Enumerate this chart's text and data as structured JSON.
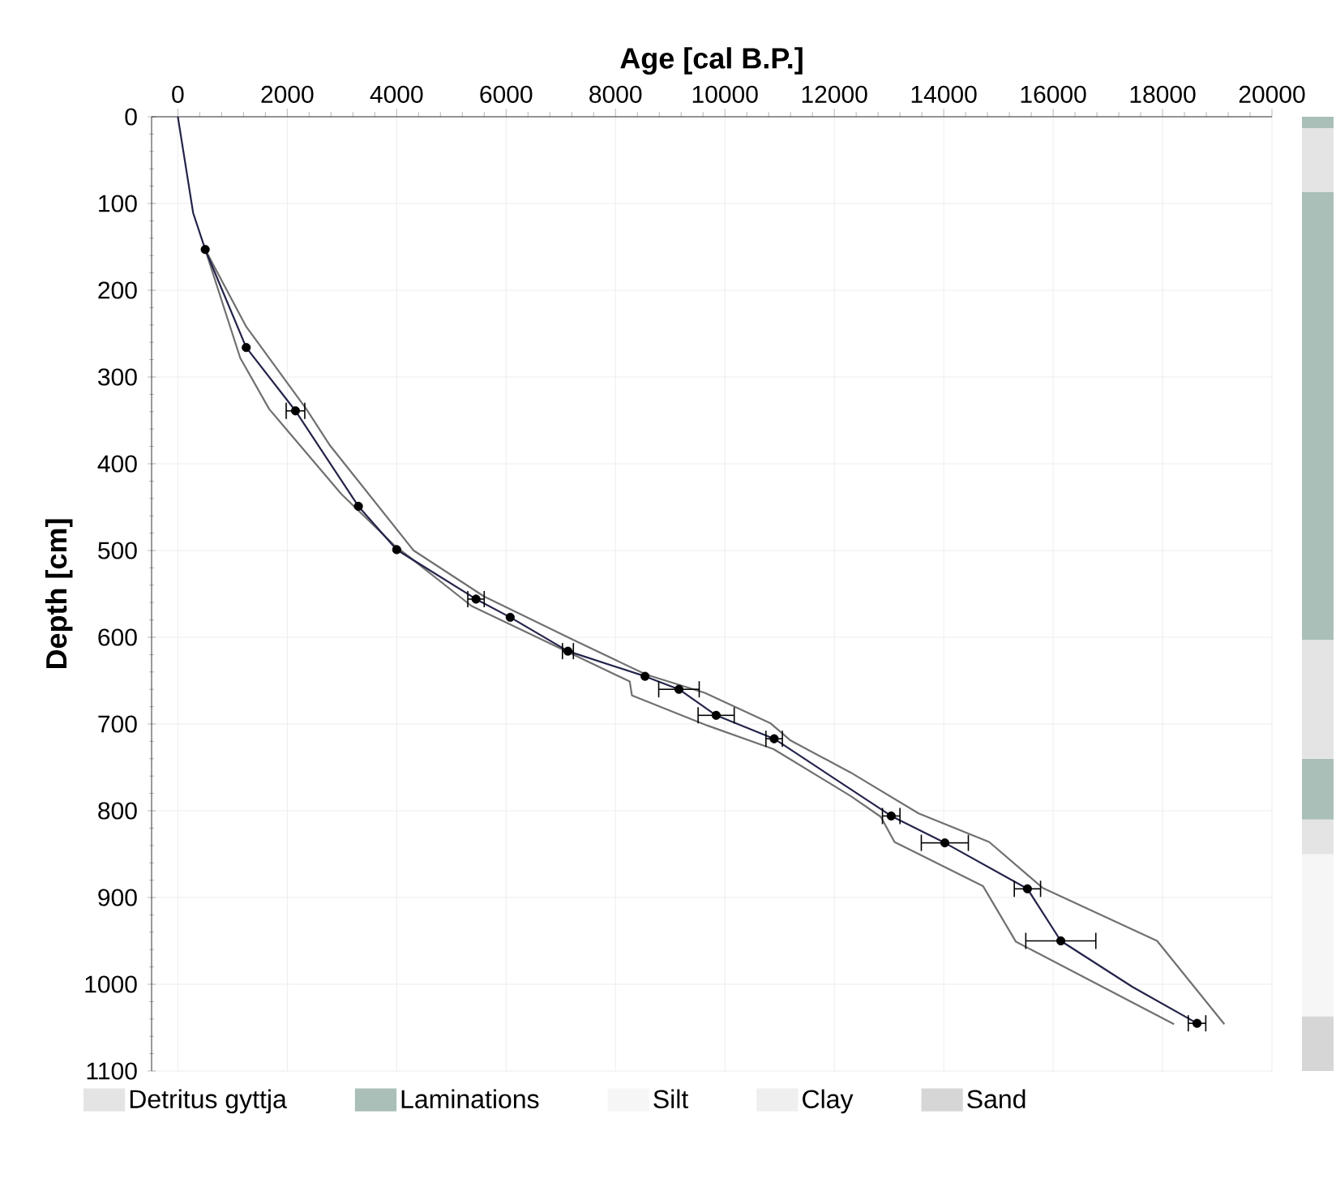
{
  "chart_data": [
    {
      "type": "line",
      "xlabel": "Age [cal B.P.]",
      "ylabel": "Depth [cm]",
      "xlim": [
        -480,
        20000
      ],
      "ylim": [
        1100,
        0
      ],
      "xticks": [
        0,
        2000,
        4000,
        6000,
        8000,
        10000,
        12000,
        14000,
        16000,
        18000,
        20000
      ],
      "yticks": [
        0,
        100,
        200,
        300,
        400,
        500,
        600,
        700,
        800,
        900,
        1000,
        1100
      ],
      "grid": true,
      "series": [
        {
          "type": "line",
          "color": "#707070",
          "x": [
            500,
            1250,
            2350,
            2770,
            4310,
            5600,
            7260,
            8560,
            9630,
            10830,
            11200,
            12300,
            13540,
            14830,
            15810,
            17900,
            19130
          ],
          "values": [
            153,
            242,
            337,
            378,
            500,
            553,
            604,
            643,
            664,
            699,
            719,
            756,
            803,
            836,
            889,
            950,
            1046
          ]
        },
        {
          "type": "line",
          "color": "#707070",
          "x": [
            500,
            1140,
            1670,
            2990,
            3940,
            5370,
            8260,
            8300,
            9690,
            10890,
            12300,
            12850,
            13100,
            14720,
            15320,
            18210
          ],
          "values": [
            153,
            278,
            337,
            435,
            493,
            564,
            651,
            667,
            702,
            729,
            783,
            807,
            836,
            887,
            951,
            1046
          ]
        },
        {
          "type": "line",
          "color": "#23234a",
          "x": [
            0,
            280,
            500,
            1250,
            2150,
            3300,
            4000,
            5450,
            6075,
            7130,
            8540,
            9160,
            9840,
            10900,
            13040,
            14020,
            15530,
            16140,
            17450,
            18630
          ],
          "values": [
            0,
            111,
            153,
            266,
            339,
            449,
            499,
            556,
            577,
            616,
            645,
            660,
            690,
            717,
            806,
            837,
            890,
            950,
            1003,
            1045
          ]
        },
        {
          "type": "scatter",
          "color": "#000000",
          "marker": "circle",
          "x": [
            500,
            1250,
            2150,
            3300,
            4000,
            5450,
            6075,
            7130,
            8540,
            9160,
            9840,
            10900,
            13040,
            14020,
            15530,
            16140,
            18630
          ],
          "values": [
            153,
            266,
            339,
            449,
            499,
            556,
            577,
            616,
            645,
            660,
            690,
            717,
            806,
            837,
            890,
            950,
            1045
          ],
          "xerrors": [
            null,
            null,
            170,
            null,
            null,
            150,
            null,
            100,
            null,
            370,
            330,
            150,
            160,
            430,
            240,
            640,
            160
          ]
        }
      ]
    },
    {
      "type": "bar",
      "stacked": true,
      "categories": [
        null
      ],
      "ylim": [
        1100,
        0
      ],
      "tick_labels": false,
      "legend": "bottom",
      "series": [
        {
          "color": "#a9bfb7",
          "values": [
            13
          ]
        },
        {
          "name": "Detritus gyttja",
          "color": "#e4e4e4",
          "values": [
            74
          ]
        },
        {
          "name": "Laminations",
          "color": "#a9bfb7",
          "values": [
            516
          ]
        },
        {
          "color": "#e4e4e4",
          "values": [
            137
          ]
        },
        {
          "color": "#a9bfb7",
          "values": [
            70
          ]
        },
        {
          "color": "#e4e4e4",
          "values": [
            40
          ]
        },
        {
          "name": "Silt",
          "color": "#f6f6f6",
          "values": [
            187
          ]
        },
        {
          "name": "Clay",
          "color": "#efefef",
          "values": [
            0
          ]
        },
        {
          "name": "Sand",
          "color": "#d6d6d6",
          "values": [
            63
          ]
        }
      ]
    }
  ]
}
